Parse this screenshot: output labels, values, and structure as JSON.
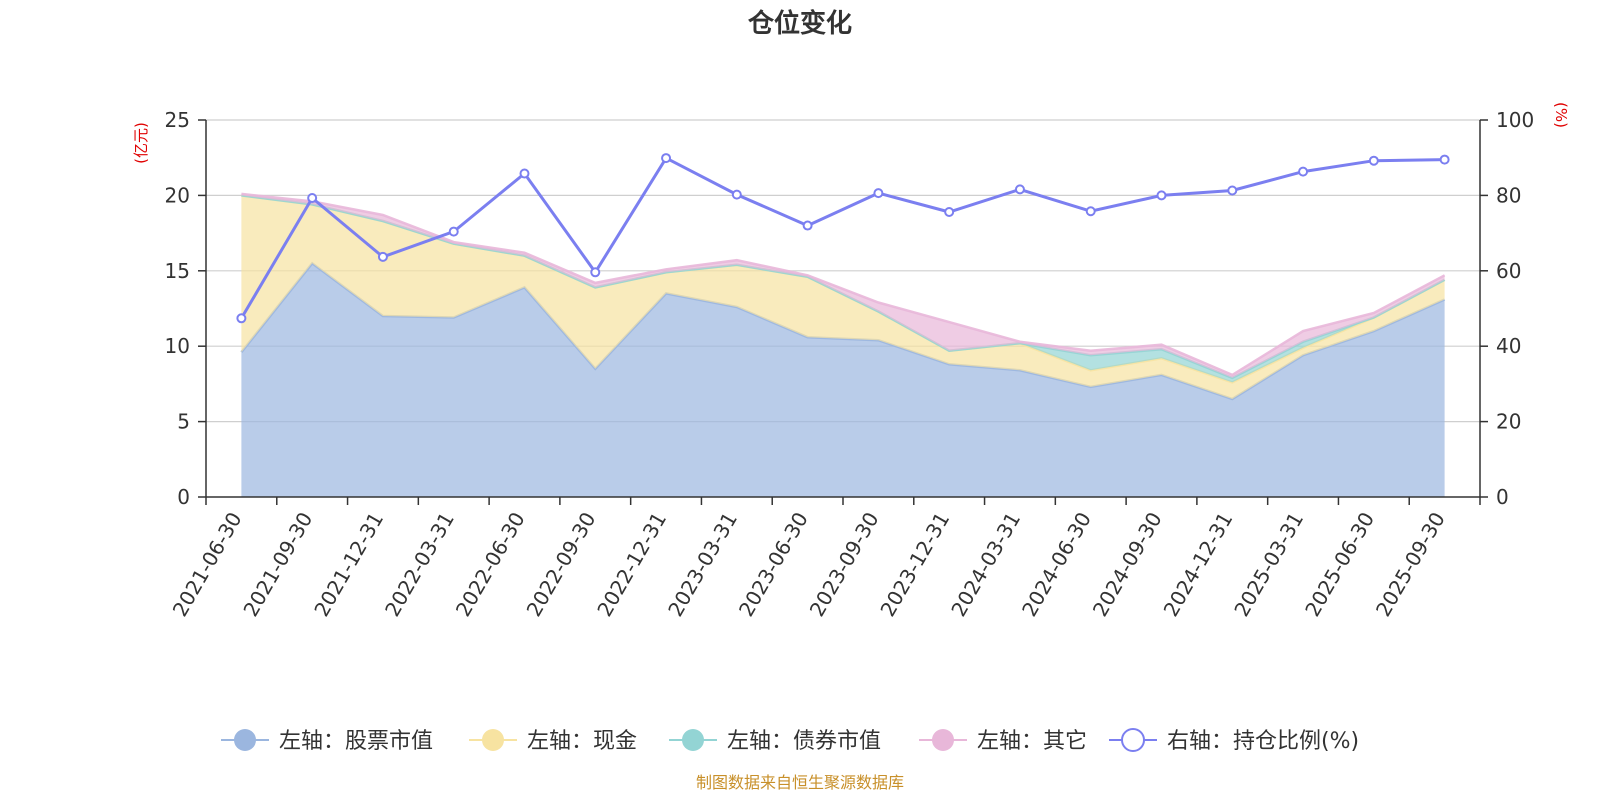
{
  "chart_data": {
    "type": "area",
    "title": "仓位变化",
    "left_axis_unit": "(亿元)",
    "right_axis_unit": "(%)",
    "left_ylim": [
      0,
      25
    ],
    "left_ticks": [
      "0",
      "5",
      "10",
      "15",
      "20",
      "25"
    ],
    "right_ylim": [
      0,
      100
    ],
    "right_ticks": [
      "0",
      "20",
      "40",
      "60",
      "80",
      "100"
    ],
    "categories": [
      "2021-06-30",
      "2021-09-30",
      "2021-12-31",
      "2022-03-31",
      "2022-06-30",
      "2022-09-30",
      "2022-12-31",
      "2023-03-31",
      "2023-06-30",
      "2023-09-30",
      "2023-12-31",
      "2024-03-31",
      "2024-06-30",
      "2024-09-30",
      "2024-12-31",
      "2025-03-31",
      "2025-06-30",
      "2025-09-30"
    ],
    "series": [
      {
        "name": "左轴：股票市值",
        "axis": "left",
        "kind": "stacked-area",
        "color": "#9bb6df",
        "values": [
          9.6,
          15.5,
          12.0,
          11.9,
          13.9,
          8.5,
          13.5,
          12.6,
          10.6,
          10.4,
          8.8,
          8.4,
          7.3,
          8.1,
          6.5,
          9.4,
          11.0,
          13.1
        ]
      },
      {
        "name": "左轴：现金",
        "axis": "left",
        "kind": "stacked-area",
        "color": "#f7e3a1",
        "values": [
          10.4,
          3.9,
          6.3,
          4.9,
          2.1,
          5.4,
          1.4,
          2.8,
          4.0,
          1.9,
          0.9,
          1.8,
          1.1,
          1.1,
          1.1,
          0.5,
          0.9,
          1.3
        ]
      },
      {
        "name": "左轴：债券市值",
        "axis": "left",
        "kind": "stacked-area",
        "color": "#93d4d4",
        "values": [
          0,
          0,
          0,
          0,
          0,
          0,
          0,
          0,
          0,
          0,
          0,
          0,
          1.0,
          0.6,
          0.3,
          0.4,
          0,
          0
        ]
      },
      {
        "name": "左轴：其它",
        "axis": "left",
        "kind": "stacked-area",
        "color": "#e8b7d9",
        "values": [
          0.1,
          0.2,
          0.4,
          0.1,
          0.2,
          0.3,
          0.2,
          0.3,
          0.1,
          0.6,
          1.9,
          0.1,
          0.3,
          0.3,
          0.2,
          0.7,
          0.3,
          0.3
        ]
      },
      {
        "name": "右轴：持仓比例(%)",
        "axis": "right",
        "kind": "line",
        "color": "#7b7ff0",
        "values": [
          47.4,
          79.3,
          63.7,
          70.4,
          85.8,
          59.6,
          89.9,
          80.2,
          72.0,
          80.6,
          75.6,
          81.6,
          75.8,
          80.0,
          81.3,
          86.3,
          89.2,
          89.5
        ]
      }
    ],
    "legend_position": "bottom-center",
    "grid": true
  },
  "footer": {
    "source": "制图数据来自恒生聚源数据库"
  }
}
